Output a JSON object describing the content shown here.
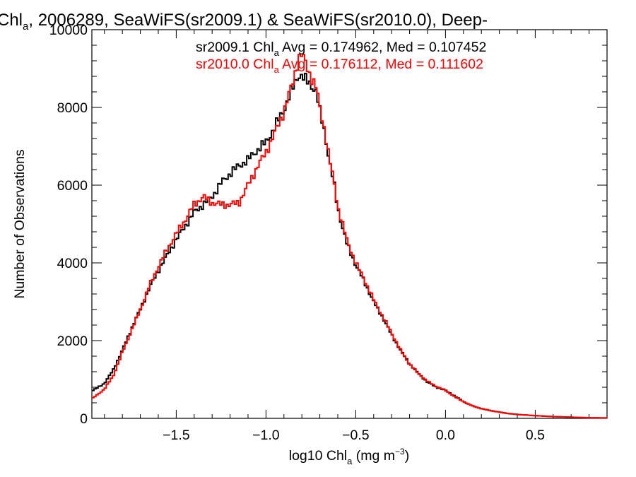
{
  "title": {
    "prefix": "Chl",
    "sub": "a",
    "rest": ", 2006289, SeaWiFS(sr2009.1) & SeaWiFS(sr2010.0), Deep-"
  },
  "stats": [
    {
      "pre": "sr2009.1 Chl",
      "sub": "a",
      "post": " Avg = 0.174962, Med = 0.107452",
      "color": "#000000"
    },
    {
      "pre": "sr2010.0 Chl",
      "sub": "a",
      "post": " Avg = 0.176112, Med = 0.111602",
      "color": "#ff0000"
    }
  ],
  "xlabel": {
    "pre": "log10 Chl",
    "sub": "a",
    "post": " (mg m",
    "sup": "−3",
    "close": ")"
  },
  "ylabel": "Number of Observations",
  "chart_data": {
    "type": "line",
    "step": true,
    "xlim": [
      -1.97,
      0.9
    ],
    "ylim": [
      0,
      10000
    ],
    "xticks": [
      -1.5,
      -1.0,
      -0.5,
      0.0,
      0.5
    ],
    "xtick_labels": [
      "−1.5",
      "−1.0",
      "−0.5",
      "0.0",
      "0.5"
    ],
    "yticks": [
      0,
      2000,
      4000,
      6000,
      8000,
      10000
    ],
    "ytick_labels": [
      "0",
      "2000",
      "4000",
      "6000",
      "8000",
      "10000"
    ],
    "series": [
      {
        "color": "#000000",
        "points": [
          [
            -1.97,
            700
          ],
          [
            -1.9,
            900
          ],
          [
            -1.85,
            1250
          ],
          [
            -1.8,
            1750
          ],
          [
            -1.75,
            2300
          ],
          [
            -1.7,
            2800
          ],
          [
            -1.65,
            3350
          ],
          [
            -1.6,
            3800
          ],
          [
            -1.55,
            4200
          ],
          [
            -1.5,
            4600
          ],
          [
            -1.45,
            4950
          ],
          [
            -1.4,
            5300
          ],
          [
            -1.35,
            5500
          ],
          [
            -1.3,
            5700
          ],
          [
            -1.25,
            6050
          ],
          [
            -1.2,
            6300
          ],
          [
            -1.15,
            6500
          ],
          [
            -1.1,
            6650
          ],
          [
            -1.05,
            6900
          ],
          [
            -1.0,
            7100
          ],
          [
            -0.95,
            7500
          ],
          [
            -0.9,
            7950
          ],
          [
            -0.85,
            8500
          ],
          [
            -0.82,
            8850
          ],
          [
            -0.8,
            8800
          ],
          [
            -0.78,
            8700
          ],
          [
            -0.75,
            8600
          ],
          [
            -0.72,
            8400
          ],
          [
            -0.7,
            7900
          ],
          [
            -0.67,
            7300
          ],
          [
            -0.65,
            6700
          ],
          [
            -0.62,
            6000
          ],
          [
            -0.6,
            5400
          ],
          [
            -0.55,
            4500
          ],
          [
            -0.5,
            3950
          ],
          [
            -0.45,
            3500
          ],
          [
            -0.4,
            3000
          ],
          [
            -0.35,
            2600
          ],
          [
            -0.3,
            2150
          ],
          [
            -0.25,
            1750
          ],
          [
            -0.2,
            1400
          ],
          [
            -0.15,
            1150
          ],
          [
            -0.1,
            930
          ],
          [
            -0.05,
            800
          ],
          [
            0.0,
            720
          ],
          [
            0.05,
            580
          ],
          [
            0.1,
            430
          ],
          [
            0.15,
            320
          ],
          [
            0.2,
            250
          ],
          [
            0.25,
            200
          ],
          [
            0.3,
            160
          ],
          [
            0.35,
            125
          ],
          [
            0.4,
            100
          ],
          [
            0.5,
            70
          ],
          [
            0.6,
            45
          ],
          [
            0.7,
            30
          ],
          [
            0.8,
            15
          ],
          [
            0.9,
            10
          ]
        ]
      },
      {
        "color": "#ff0000",
        "points": [
          [
            -1.97,
            500
          ],
          [
            -1.9,
            750
          ],
          [
            -1.85,
            1100
          ],
          [
            -1.8,
            1700
          ],
          [
            -1.75,
            2250
          ],
          [
            -1.7,
            2800
          ],
          [
            -1.65,
            3400
          ],
          [
            -1.6,
            3900
          ],
          [
            -1.55,
            4350
          ],
          [
            -1.5,
            4750
          ],
          [
            -1.45,
            5100
          ],
          [
            -1.4,
            5500
          ],
          [
            -1.35,
            5700
          ],
          [
            -1.3,
            5550
          ],
          [
            -1.25,
            5500
          ],
          [
            -1.2,
            5500
          ],
          [
            -1.15,
            5550
          ],
          [
            -1.1,
            6000
          ],
          [
            -1.05,
            6450
          ],
          [
            -1.0,
            6850
          ],
          [
            -0.95,
            7350
          ],
          [
            -0.9,
            7900
          ],
          [
            -0.85,
            8650
          ],
          [
            -0.82,
            9250
          ],
          [
            -0.8,
            9350
          ],
          [
            -0.78,
            9150
          ],
          [
            -0.75,
            8800
          ],
          [
            -0.72,
            8500
          ],
          [
            -0.7,
            8000
          ],
          [
            -0.67,
            7350
          ],
          [
            -0.65,
            6750
          ],
          [
            -0.62,
            6050
          ],
          [
            -0.6,
            5450
          ],
          [
            -0.55,
            4600
          ],
          [
            -0.5,
            4000
          ],
          [
            -0.45,
            3550
          ],
          [
            -0.4,
            3050
          ],
          [
            -0.35,
            2620
          ],
          [
            -0.3,
            2200
          ],
          [
            -0.25,
            1750
          ],
          [
            -0.2,
            1400
          ],
          [
            -0.15,
            1150
          ],
          [
            -0.1,
            950
          ],
          [
            -0.05,
            820
          ],
          [
            0.0,
            720
          ],
          [
            0.05,
            560
          ],
          [
            0.1,
            430
          ],
          [
            0.15,
            320
          ],
          [
            0.2,
            250
          ],
          [
            0.25,
            200
          ],
          [
            0.3,
            160
          ],
          [
            0.35,
            125
          ],
          [
            0.4,
            100
          ],
          [
            0.5,
            70
          ],
          [
            0.6,
            45
          ],
          [
            0.7,
            30
          ],
          [
            0.8,
            15
          ],
          [
            0.9,
            10
          ]
        ]
      }
    ]
  }
}
